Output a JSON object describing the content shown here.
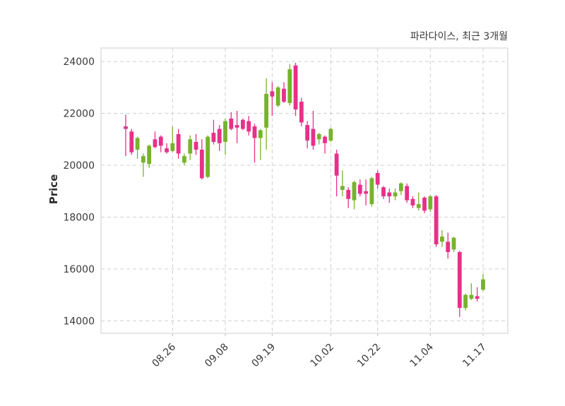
{
  "title": "파라다이스, 최근 3개월",
  "y_axis": {
    "label": "Price",
    "tick_values": [
      14000,
      16000,
      18000,
      20000,
      22000,
      24000
    ]
  },
  "x_axis": {
    "tick_labels": [
      "08.26",
      "09.08",
      "09.19",
      "10.02",
      "10.22",
      "11.04",
      "11.17"
    ],
    "tick_indices": [
      8,
      17,
      25,
      35,
      43,
      52,
      61
    ]
  },
  "chart_data": {
    "type": "candlestick",
    "title": "파라다이스, 최근 3개월",
    "ylabel": "Price",
    "ylim": [
      13520,
      24520
    ],
    "grid": "dashed",
    "legend": "none",
    "up_color": "#77b32b",
    "down_color": "#e8308a",
    "grid_color": "#cfcfcf",
    "spine_color": "#d6d6d6",
    "text_color": "#3a3a3a",
    "x_tick_labels": [
      "08.26",
      "09.08",
      "09.19",
      "10.02",
      "10.22",
      "11.04",
      "11.17"
    ],
    "x_tick_positions": [
      8,
      17,
      25,
      35,
      43,
      52,
      61
    ],
    "candle_format": [
      "open",
      "high",
      "low",
      "close"
    ],
    "candles": [
      [
        21500,
        21950,
        20350,
        21400
      ],
      [
        21300,
        21400,
        20400,
        20500
      ],
      [
        20600,
        21100,
        20250,
        21050
      ],
      [
        20100,
        20450,
        19550,
        20350
      ],
      [
        20050,
        20800,
        19900,
        20750
      ],
      [
        21000,
        21300,
        20650,
        20700
      ],
      [
        21100,
        21150,
        20500,
        20750
      ],
      [
        20650,
        20850,
        20450,
        20500
      ],
      [
        20550,
        21500,
        20500,
        20850
      ],
      [
        21200,
        21400,
        20250,
        20450
      ],
      [
        20100,
        20450,
        20000,
        20350
      ],
      [
        20450,
        21150,
        20200,
        21000
      ],
      [
        20900,
        21200,
        20400,
        20600
      ],
      [
        20600,
        21000,
        19450,
        19500
      ],
      [
        19550,
        21150,
        19500,
        21100
      ],
      [
        21250,
        21750,
        20800,
        20900
      ],
      [
        21400,
        21550,
        20550,
        20850
      ],
      [
        20900,
        21800,
        20400,
        21700
      ],
      [
        21800,
        22050,
        21350,
        21400
      ],
      [
        21550,
        22100,
        20850,
        21450
      ],
      [
        21750,
        21800,
        21350,
        21400
      ],
      [
        21700,
        21900,
        21150,
        21300
      ],
      [
        21500,
        21600,
        20100,
        21050
      ],
      [
        21050,
        21400,
        20200,
        21350
      ],
      [
        21450,
        23350,
        20600,
        22750
      ],
      [
        22850,
        23200,
        21900,
        22650
      ],
      [
        22300,
        23050,
        22250,
        23000
      ],
      [
        22950,
        23200,
        22400,
        22450
      ],
      [
        22400,
        23900,
        22300,
        23700
      ],
      [
        23850,
        23950,
        21900,
        22150
      ],
      [
        22450,
        22600,
        21500,
        21650
      ],
      [
        21550,
        21700,
        20650,
        20950
      ],
      [
        21400,
        22100,
        20600,
        20750
      ],
      [
        21000,
        21250,
        20800,
        21200
      ],
      [
        21100,
        21150,
        20450,
        20850
      ],
      [
        20950,
        21450,
        20900,
        21400
      ],
      [
        20450,
        20600,
        18800,
        19600
      ],
      [
        19050,
        19800,
        18800,
        19200
      ],
      [
        19050,
        19150,
        18350,
        18700
      ],
      [
        18650,
        19400,
        18300,
        19350
      ],
      [
        19250,
        19450,
        18800,
        18900
      ],
      [
        19000,
        19450,
        18450,
        18900
      ],
      [
        18500,
        19550,
        18400,
        19500
      ],
      [
        19700,
        19800,
        19100,
        19250
      ],
      [
        19150,
        19200,
        18700,
        18800
      ],
      [
        18950,
        19100,
        18550,
        18800
      ],
      [
        18800,
        19100,
        18650,
        18950
      ],
      [
        19000,
        19350,
        18850,
        19300
      ],
      [
        19200,
        19300,
        18550,
        18650
      ],
      [
        18700,
        18800,
        18350,
        18450
      ],
      [
        18350,
        18950,
        18250,
        18500
      ],
      [
        18750,
        18800,
        18150,
        18250
      ],
      [
        18300,
        18850,
        18200,
        18800
      ],
      [
        18800,
        18850,
        16850,
        16950
      ],
      [
        17050,
        17500,
        16850,
        17250
      ],
      [
        17050,
        17400,
        16400,
        16650
      ],
      [
        16750,
        17250,
        16650,
        17200
      ],
      [
        16650,
        16700,
        14150,
        14500
      ],
      [
        14500,
        15050,
        14400,
        15000
      ],
      [
        14850,
        15450,
        14800,
        15000
      ],
      [
        14950,
        15300,
        14750,
        14850
      ],
      [
        15200,
        15800,
        15150,
        15600
      ]
    ]
  }
}
